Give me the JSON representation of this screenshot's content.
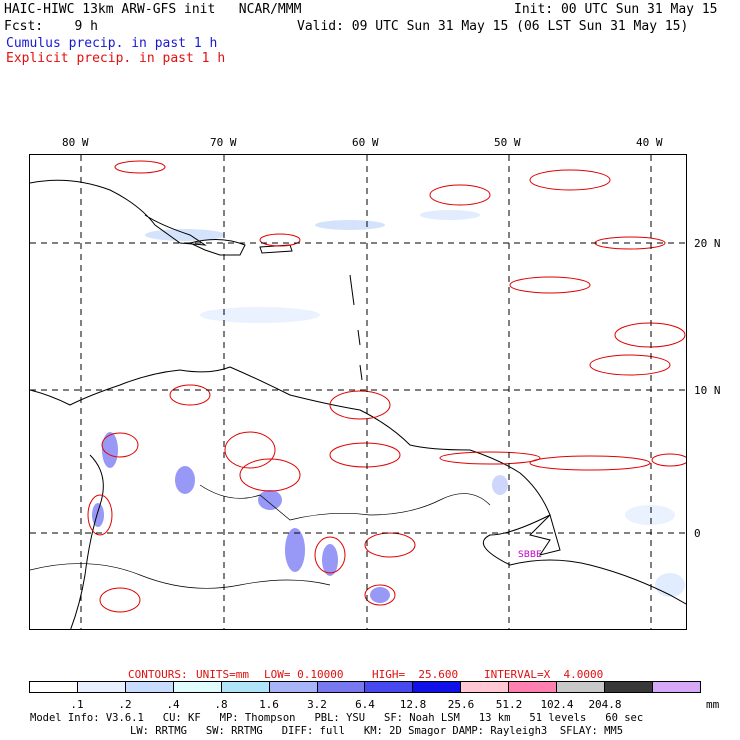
{
  "header": {
    "line1_left": "HAIC-HIWC 13km ARW-GFS init   NCAR/MMM",
    "line1_right": "Init: 00 UTC Sun 31 May 15",
    "line2_left": "Fcst:    9 h",
    "line2_right": "Valid: 09 UTC Sun 31 May 15 (06 LST Sun 31 May 15)",
    "cumulus_label": "Cumulus precip. in past 1 h",
    "explicit_label": "Explicit precip. in past 1 h"
  },
  "map": {
    "lon_labels": [
      "80 W",
      "70 W",
      "60 W",
      "50 W",
      "40 W"
    ],
    "lat_labels": [
      "20 N",
      "10 N",
      "0"
    ],
    "station_labels": [
      "SBBE"
    ],
    "colors": {
      "cumulus": "#4444ee",
      "explicit": "#e00000",
      "coast": "#000000"
    }
  },
  "contours": {
    "prefix": "CONTOURS:",
    "units": "UNITS=mm",
    "low": "LOW= 0.10000",
    "high": "HIGH=  25.600",
    "interval": "INTERVAL=X  4.0000"
  },
  "legend": {
    "ticks": [
      ".1",
      ".2",
      ".4",
      ".8",
      "1.6",
      "3.2",
      "6.4",
      "12.8",
      "25.6",
      "51.2",
      "102.4",
      "204.8"
    ],
    "units": "mm",
    "colors": [
      "#ffffff",
      "#e8f0ff",
      "#c8dcff",
      "#e0fcfc",
      "#b0e4f8",
      "#a8b4f8",
      "#7878f0",
      "#4848f0",
      "#1010e8",
      "#ffc8d4",
      "#ff80b0",
      "#c8c8c8",
      "#383838",
      "#d8a8f8"
    ]
  },
  "footer": {
    "line1": "Model Info: V3.6.1   CU: KF   MP: Thompson   PBL: YSU   SF: Noah LSM   13 km   51 levels   60 sec",
    "line2": "LW: RRTMG   SW: RRTMG   DIFF: full   KM: 2D Smagor DAMP: Rayleigh3  SFLAY: MM5"
  }
}
